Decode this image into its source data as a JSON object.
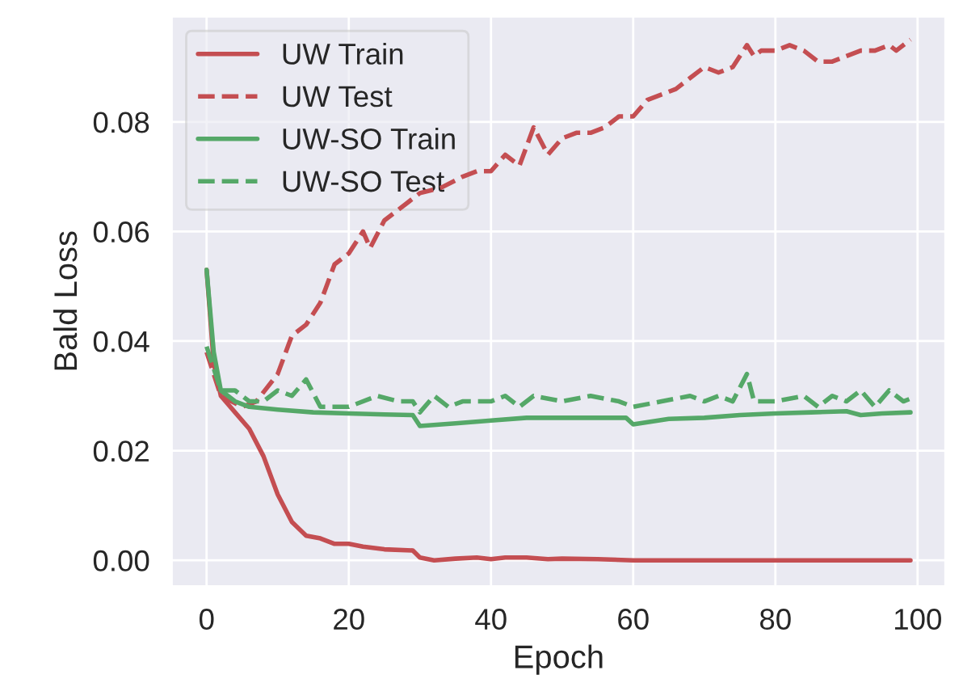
{
  "chart_data": {
    "type": "line",
    "xlabel": "Epoch",
    "ylabel": "Bald Loss",
    "xlim": [
      -4.95,
      103.95
    ],
    "ylim": [
      -0.0048,
      0.0993
    ],
    "xticks": [
      0,
      20,
      40,
      60,
      80,
      100
    ],
    "yticks": [
      {
        "value": 0,
        "label": "0.00"
      },
      0.02,
      0.04,
      0.06,
      0.08
    ],
    "grid": true,
    "legend": "top left",
    "series": [
      {
        "name": "UW Train",
        "color": "#c44e52",
        "line_style": "solid",
        "x": [
          0,
          1,
          2,
          4,
          6,
          8,
          10,
          12,
          14,
          16,
          18,
          20,
          22,
          25,
          29,
          30,
          32,
          35,
          38,
          40,
          42,
          45,
          48,
          50,
          55,
          60,
          70,
          80,
          90,
          99
        ],
        "values": [
          0.053,
          0.036,
          0.03,
          0.027,
          0.024,
          0.019,
          0.012,
          0.007,
          0.0045,
          0.004,
          0.003,
          0.003,
          0.0025,
          0.002,
          0.0018,
          0.0005,
          0.0,
          0.0003,
          0.0005,
          0.0002,
          0.0005,
          0.0005,
          0.0002,
          0.0003,
          0.0002,
          0.0,
          0.0,
          0.0,
          0.0,
          0.0
        ]
      },
      {
        "name": "UW Test",
        "color": "#c44e52",
        "line_style": "dashed",
        "x": [
          0,
          2,
          5,
          7,
          10,
          12,
          14,
          16,
          18,
          20,
          22,
          23,
          25,
          28,
          30,
          33,
          36,
          38,
          40,
          42,
          44,
          46,
          48,
          50,
          52,
          54,
          56,
          58,
          60,
          62,
          64,
          66,
          68,
          70,
          72,
          74,
          76,
          77,
          78,
          80,
          82,
          84,
          86,
          88,
          90,
          92,
          94,
          96,
          97,
          99
        ],
        "values": [
          0.038,
          0.03,
          0.028,
          0.029,
          0.034,
          0.041,
          0.043,
          0.047,
          0.054,
          0.056,
          0.06,
          0.057,
          0.062,
          0.065,
          0.067,
          0.068,
          0.07,
          0.071,
          0.071,
          0.074,
          0.072,
          0.079,
          0.074,
          0.077,
          0.078,
          0.078,
          0.079,
          0.081,
          0.081,
          0.084,
          0.085,
          0.086,
          0.088,
          0.09,
          0.089,
          0.09,
          0.094,
          0.092,
          0.093,
          0.093,
          0.094,
          0.093,
          0.091,
          0.091,
          0.092,
          0.093,
          0.093,
          0.094,
          0.093,
          0.095
        ]
      },
      {
        "name": "UW-SO Train",
        "color": "#55a868",
        "line_style": "solid",
        "x": [
          0,
          1,
          2,
          4,
          6,
          10,
          15,
          20,
          25,
          29,
          30,
          35,
          40,
          45,
          50,
          55,
          59,
          60,
          65,
          70,
          75,
          80,
          85,
          90,
          92,
          95,
          99
        ],
        "values": [
          0.053,
          0.038,
          0.031,
          0.029,
          0.028,
          0.0275,
          0.027,
          0.0268,
          0.0266,
          0.0265,
          0.0245,
          0.025,
          0.0255,
          0.026,
          0.026,
          0.026,
          0.026,
          0.0248,
          0.0258,
          0.026,
          0.0265,
          0.0268,
          0.027,
          0.0272,
          0.0265,
          0.0268,
          0.027
        ]
      },
      {
        "name": "UW-SO Test",
        "color": "#55a868",
        "line_style": "dashed",
        "x": [
          0,
          2,
          4,
          6,
          8,
          10,
          12,
          14,
          16,
          20,
          24,
          27,
          29,
          30,
          32,
          34,
          36,
          40,
          42,
          44,
          46,
          50,
          54,
          58,
          60,
          64,
          68,
          70,
          72,
          74,
          76,
          77,
          80,
          84,
          86,
          88,
          90,
          92,
          94,
          96,
          98,
          99
        ],
        "values": [
          0.039,
          0.031,
          0.031,
          0.029,
          0.029,
          0.031,
          0.03,
          0.033,
          0.028,
          0.028,
          0.03,
          0.029,
          0.029,
          0.027,
          0.03,
          0.028,
          0.029,
          0.029,
          0.03,
          0.028,
          0.03,
          0.029,
          0.03,
          0.029,
          0.028,
          0.029,
          0.03,
          0.029,
          0.03,
          0.029,
          0.034,
          0.029,
          0.029,
          0.03,
          0.028,
          0.03,
          0.029,
          0.031,
          0.028,
          0.031,
          0.029,
          0.0295
        ]
      }
    ]
  }
}
